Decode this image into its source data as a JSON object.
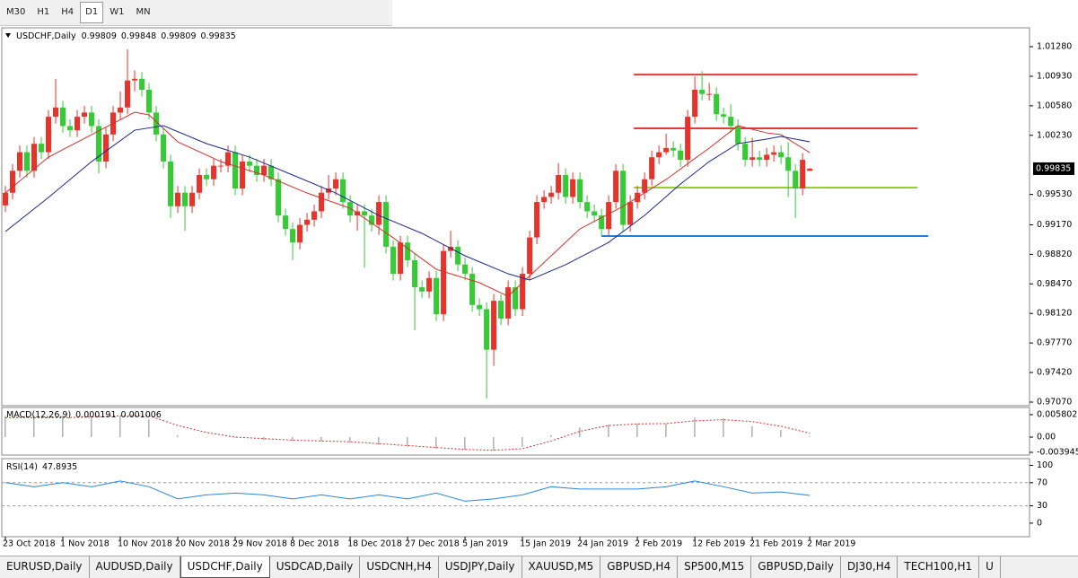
{
  "toolbar": {
    "buttons": [
      "M30",
      "H1",
      "H4",
      "D1",
      "W1",
      "MN"
    ],
    "active": 3
  },
  "tabs": {
    "items": [
      "EURUSD,Daily",
      "AUDUSD,Daily",
      "USDCHF,Daily",
      "USDCAD,Daily",
      "USDCNH,H4",
      "USDJPY,Daily",
      "XAUUSD,M5",
      "GBPUSD,H4",
      "SP500,M15",
      "GBPUSD,Daily",
      "DJ30,H4",
      "TECH100,H1",
      "U"
    ],
    "active": 2
  },
  "chart_data": [
    {
      "type": "candlestick",
      "title": "USDCHF,Daily",
      "up_color": "#e8322a",
      "down_color": "#33cc33",
      "open": [
        0.994,
        0.9955,
        0.9981,
        1.0003,
        0.9981,
        1.0013,
        1.0003,
        1.0045,
        1.0056,
        1.0034,
        1.0029,
        1.0045,
        1.005,
        1.0034,
        0.9992,
        1.0024,
        1.005,
        1.0056,
        1.0088,
        1.009,
        1.0077,
        1.005,
        1.0024,
        0.9992,
        0.9939,
        0.9955,
        0.9939,
        0.9955,
        0.9976,
        0.9971,
        0.9987,
        0.9987,
        1.0003,
        0.996,
        0.9992,
        0.9987,
        0.9976,
        0.9987,
        0.9971,
        0.9928,
        0.9912,
        0.9896,
        0.9917,
        0.9923,
        0.9933,
        0.9955,
        0.996,
        0.9971,
        0.9944,
        0.9928,
        0.9933,
        0.9928,
        0.9917,
        0.9944,
        0.9891,
        0.9859,
        0.9896,
        0.9875,
        0.9843,
        0.9838,
        0.9854,
        0.9811,
        0.9886,
        0.9891,
        0.987,
        0.9859,
        0.9822,
        0.9817,
        0.9769,
        0.9827,
        0.9806,
        0.9843,
        0.9817,
        0.9859,
        0.9902,
        0.9944,
        0.995,
        0.9955,
        0.9976,
        0.995,
        0.9971,
        0.9944,
        0.9933,
        0.9928,
        0.9912,
        0.9944,
        0.9981,
        0.9917,
        0.9944,
        0.9955,
        0.9971,
        0.9997,
        1.0003,
        1.0008,
        1.0005,
        0.9994,
        1.0045,
        1.0077,
        1.0072,
        1.0072,
        1.0048,
        1.0045,
        1.0034,
        1.0013,
        0.9994,
        0.9997,
        0.9994,
        1.0,
        1.0003,
        0.9997,
        0.9981,
        0.996,
        0.99809
      ],
      "high": [
        0.9963,
        0.9989,
        1.0011,
        1.0011,
        1.0021,
        1.0021,
        1.0053,
        1.009,
        1.0064,
        1.0042,
        1.0053,
        1.0058,
        1.0058,
        1.0042,
        1.0032,
        1.0058,
        1.0075,
        1.0125,
        1.01,
        1.0098,
        1.0085,
        1.0058,
        1.0032,
        1.0,
        0.9963,
        0.9963,
        0.9963,
        0.9984,
        0.9984,
        0.9995,
        0.9995,
        1.0011,
        1.0011,
        1.0,
        1.0,
        0.9995,
        0.9995,
        0.9995,
        0.9979,
        0.9936,
        0.992,
        0.9925,
        0.9931,
        0.9941,
        0.9963,
        0.9976,
        0.9979,
        0.9979,
        0.9952,
        0.9941,
        0.9941,
        0.9936,
        0.9952,
        0.9952,
        0.9899,
        0.9904,
        0.9904,
        0.9883,
        0.9851,
        0.9862,
        0.9862,
        0.9894,
        0.991,
        0.9899,
        0.9878,
        0.9867,
        0.983,
        0.9825,
        0.9835,
        0.9835,
        0.9851,
        0.9851,
        0.9867,
        0.991,
        0.9952,
        0.9958,
        0.9963,
        0.999,
        0.9984,
        0.9979,
        0.9979,
        0.9952,
        0.9941,
        0.9936,
        0.9952,
        0.9989,
        0.9989,
        0.9952,
        0.9963,
        0.9979,
        1.0005,
        1.0011,
        1.0025,
        1.0016,
        1.0013,
        1.0053,
        1.0093,
        1.0099,
        1.0085,
        1.008,
        1.0056,
        1.006,
        1.0042,
        1.0021,
        1.002,
        1.0005,
        1.0008,
        1.0011,
        1.0011,
        1.0015,
        0.9989,
        1.0002,
        0.99848
      ],
      "low": [
        0.9932,
        0.9947,
        0.9973,
        0.9973,
        0.9973,
        0.9995,
        0.9995,
        1.0037,
        1.0026,
        1.0021,
        1.0021,
        1.0037,
        1.0026,
        0.9978,
        0.9984,
        1.0016,
        1.0042,
        1.0048,
        1.0075,
        1.0069,
        1.0042,
        1.0016,
        0.9984,
        0.9925,
        0.9931,
        0.991,
        0.9931,
        0.9947,
        0.9963,
        0.9963,
        0.9979,
        0.9979,
        0.9952,
        0.9952,
        0.9979,
        0.9968,
        0.9968,
        0.9963,
        0.992,
        0.9904,
        0.9875,
        0.9888,
        0.9909,
        0.9915,
        0.9925,
        0.9947,
        0.9952,
        0.9936,
        0.992,
        0.991,
        0.9866,
        0.9909,
        0.9905,
        0.9883,
        0.9851,
        0.9851,
        0.9867,
        0.9792,
        0.983,
        0.983,
        0.9803,
        0.9803,
        0.9878,
        0.9862,
        0.9851,
        0.9814,
        0.9809,
        0.9711,
        0.975,
        0.9798,
        0.9798,
        0.9809,
        0.9809,
        0.9851,
        0.9894,
        0.9936,
        0.9942,
        0.9947,
        0.9942,
        0.9942,
        0.9936,
        0.9925,
        0.992,
        0.9904,
        0.9904,
        0.9936,
        0.9909,
        0.9909,
        0.9936,
        0.9947,
        0.9963,
        0.9989,
        1.0,
        0.9997,
        0.9986,
        0.9986,
        1.0037,
        1.0064,
        1.0064,
        1.004,
        1.0037,
        1.0026,
        1.0005,
        0.9986,
        0.9986,
        0.9986,
        0.9986,
        0.9992,
        0.9989,
        0.995,
        0.9925,
        0.9952,
        0.99809
      ],
      "close": [
        0.9955,
        0.9981,
        1.0003,
        0.9981,
        1.0013,
        1.0003,
        1.0045,
        1.0056,
        1.0034,
        1.0029,
        1.0045,
        1.005,
        1.0034,
        0.9992,
        1.0024,
        1.005,
        1.0056,
        1.0088,
        1.009,
        1.0077,
        1.005,
        1.0024,
        0.9992,
        0.9939,
        0.9955,
        0.9939,
        0.9955,
        0.9976,
        0.9971,
        0.9987,
        0.9987,
        1.0003,
        0.996,
        0.9992,
        0.9987,
        0.9976,
        0.9987,
        0.9971,
        0.9928,
        0.9912,
        0.9896,
        0.9917,
        0.9923,
        0.9933,
        0.9955,
        0.996,
        0.9971,
        0.9944,
        0.9928,
        0.9933,
        0.9928,
        0.9917,
        0.9944,
        0.9891,
        0.9859,
        0.9896,
        0.9875,
        0.9843,
        0.9838,
        0.9854,
        0.9811,
        0.9886,
        0.9891,
        0.987,
        0.9859,
        0.9822,
        0.9817,
        0.9769,
        0.9827,
        0.9806,
        0.9843,
        0.9817,
        0.9859,
        0.9902,
        0.9944,
        0.995,
        0.9955,
        0.9976,
        0.995,
        0.9971,
        0.9944,
        0.9933,
        0.9928,
        0.9912,
        0.9944,
        0.9981,
        0.9917,
        0.9944,
        0.9955,
        0.9971,
        0.9997,
        1.0003,
        1.0008,
        1.0005,
        0.9994,
        1.0045,
        1.0077,
        1.0072,
        1.0072,
        1.0048,
        1.0045,
        1.0034,
        1.0013,
        0.9994,
        0.9997,
        0.9994,
        1.0,
        1.0003,
        0.9997,
        0.9981,
        0.996,
        0.9994,
        0.99835
      ],
      "lines": [
        {
          "color": "#d0312d",
          "x": [
            0,
            6,
            12,
            18,
            20,
            24,
            30,
            36,
            42,
            48,
            54,
            60,
            66,
            70,
            74,
            80,
            86,
            92,
            98,
            102,
            106,
            108,
            112
          ],
          "values": [
            0.99547,
            0.99972,
            1.00238,
            1.00504,
            1.00472,
            1.00153,
            0.99919,
            0.9976,
            0.99547,
            0.99366,
            0.99016,
            0.98643,
            0.98484,
            0.98324,
            0.98643,
            0.99122,
            0.99388,
            0.99707,
            1.00079,
            1.00344,
            1.00259,
            1.00238,
            1.00025
          ]
        },
        {
          "color": "#1c2a8a",
          "x": [
            0,
            6,
            12,
            18,
            22,
            28,
            34,
            40,
            46,
            52,
            58,
            64,
            70,
            73,
            78,
            84,
            89,
            94,
            98,
            102,
            106,
            108,
            112
          ],
          "values": [
            0.9909,
            0.99494,
            0.99919,
            1.00291,
            1.00344,
            1.00132,
            0.99972,
            0.9976,
            0.99547,
            0.99281,
            0.99069,
            0.98803,
            0.9859,
            0.98516,
            0.98697,
            0.98962,
            0.99281,
            0.99653,
            0.99919,
            1.00132,
            1.00185,
            1.00217,
            1.00153
          ]
        }
      ],
      "hlines": [
        {
          "value": 1.0095,
          "color": "#e53935",
          "x": [
            87.5,
            127
          ]
        },
        {
          "value": 1.00313,
          "color": "#e53935",
          "x": [
            87.5,
            127
          ]
        },
        {
          "value": 0.99611,
          "color": "#9acd32",
          "x": [
            87.5,
            127
          ]
        },
        {
          "value": 0.99037,
          "color": "#1e7fe0",
          "x": [
            83,
            128.5
          ]
        }
      ],
      "xlim": [
        -0.5,
        142.6
      ],
      "ylim": [
        0.97038,
        1.01493
      ],
      "yticks": [
        {
          "value": 1.0128,
          "label": "1.01280"
        },
        {
          "value": 1.0093,
          "label": "1.00930"
        },
        {
          "value": 1.0058,
          "label": "1.00580"
        },
        {
          "value": 1.0023,
          "label": "1.00230"
        },
        {
          "value": 0.9953,
          "label": "0.99530"
        },
        {
          "value": 0.9917,
          "label": "0.99170"
        },
        {
          "value": 0.9882,
          "label": "0.98820"
        },
        {
          "value": 0.9847,
          "label": "0.98470"
        },
        {
          "value": 0.9812,
          "label": "0.98120"
        },
        {
          "value": 0.9777,
          "label": "0.97770"
        },
        {
          "value": 0.9742,
          "label": "0.97420"
        },
        {
          "value": 0.9707,
          "label": "0.97070"
        }
      ],
      "xticks": [
        {
          "value": 0,
          "label": "23 Oct 2018"
        },
        {
          "value": 8,
          "label": "1 Nov 2018"
        },
        {
          "value": 16,
          "label": "10 Nov 2018"
        },
        {
          "value": 24,
          "label": "20 Nov 2018"
        },
        {
          "value": 32,
          "label": "29 Nov 2018"
        },
        {
          "value": 40,
          "label": "8 Dec 2018"
        },
        {
          "value": 48,
          "label": "18 Dec 2018"
        },
        {
          "value": 56,
          "label": "27 Dec 2018"
        },
        {
          "value": 64,
          "label": "5 Jan 2019"
        },
        {
          "value": 72,
          "label": "15 Jan 2019"
        },
        {
          "value": 80,
          "label": "24 Jan 2019"
        },
        {
          "value": 88,
          "label": "2 Feb 2019"
        },
        {
          "value": 96,
          "label": "12 Feb 2019"
        },
        {
          "value": 104,
          "label": "21 Feb 2019"
        },
        {
          "value": 112,
          "label": "2 Mar 2019"
        }
      ]
    },
    {
      "type": "macd",
      "title": "MACD(12,26,9)",
      "histogram_color": "#b0b0b0",
      "signal_color": "#d0312d",
      "x": [
        0,
        4,
        8,
        12,
        16,
        20,
        24,
        28,
        32,
        36,
        40,
        44,
        48,
        52,
        56,
        60,
        64,
        68,
        72,
        76,
        80,
        84,
        88,
        92,
        96,
        100,
        104,
        108,
        112
      ],
      "values": [
        0.0055,
        0.0055,
        0.0055,
        0.005,
        0.0055,
        0.0045,
        0.0005,
        0,
        -0.0002,
        -0.0008,
        -0.001,
        -0.0012,
        -0.0015,
        -0.002,
        -0.0025,
        -0.003,
        -0.0033,
        -0.0035,
        -0.0025,
        0.0005,
        0.0025,
        0.0032,
        0.0035,
        0.0035,
        0.005,
        0.0048,
        0.0028,
        0.0018,
        0.000191
      ],
      "signal": [
        0.005,
        0.005,
        0.005,
        0.0052,
        0.0055,
        0.0055,
        0.003,
        0.0012,
        0,
        -0.0004,
        -0.0008,
        -0.001,
        -0.0012,
        -0.0017,
        -0.0022,
        -0.0027,
        -0.0032,
        -0.0034,
        -0.003,
        -0.001,
        0.0015,
        0.003,
        0.0034,
        0.0035,
        0.0042,
        0.0045,
        0.004,
        0.0028,
        0.001006
      ],
      "ylim": [
        -0.00441,
        0.00742
      ],
      "yticks": [
        0.005802,
        {
          "value": 0,
          "label": "0.00"
        },
        -0.003945
      ]
    },
    {
      "type": "line",
      "title": "RSI(14)",
      "color": "#2a86d8",
      "x": [
        0,
        4,
        8,
        12,
        16,
        20,
        24,
        28,
        32,
        36,
        40,
        44,
        48,
        52,
        56,
        60,
        64,
        68,
        72,
        76,
        80,
        84,
        88,
        92,
        96,
        100,
        104,
        108,
        112
      ],
      "values": [
        70,
        63,
        70,
        63,
        73,
        63,
        42,
        49,
        52,
        49,
        42,
        49,
        42,
        49,
        42,
        52,
        38,
        42,
        49,
        63,
        59,
        59,
        59,
        63,
        73,
        63,
        52,
        54,
        47.8935
      ],
      "levels": [
        70,
        30
      ],
      "ylim": [
        -11,
        108.5
      ],
      "yticks": [
        100,
        70,
        30,
        0
      ]
    }
  ]
}
